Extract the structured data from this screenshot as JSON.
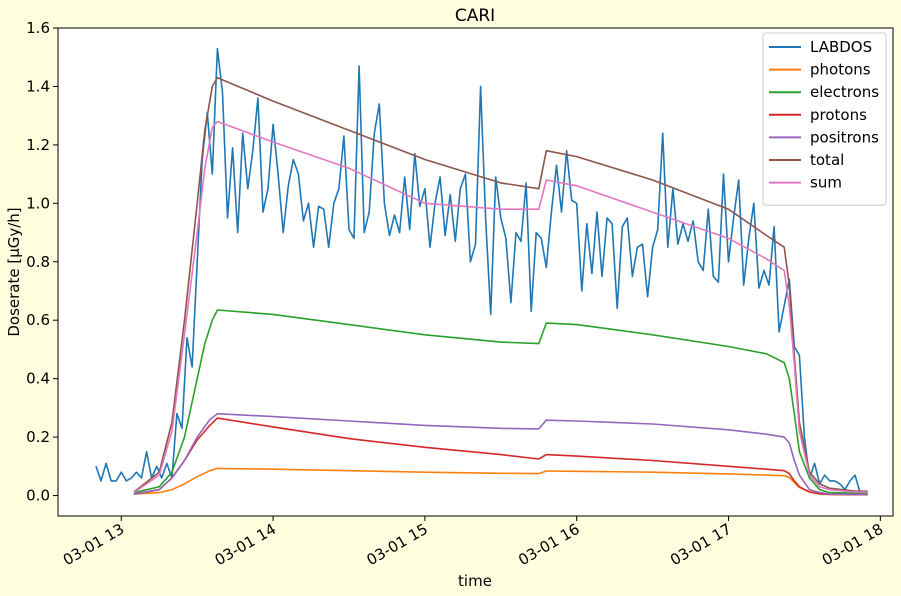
{
  "chart_data": {
    "type": "line",
    "title": "CARI",
    "xlabel": "time",
    "ylabel": "Doserate [µGy/h]",
    "xlim": [
      "2024-03-01T12:35",
      "2024-03-01T18:05"
    ],
    "ylim": [
      -0.07,
      1.6
    ],
    "x_ticks": [
      "2024-03-01T13:00",
      "2024-03-01T14:00",
      "2024-03-01T15:00",
      "2024-03-01T16:00",
      "2024-03-01T17:00",
      "2024-03-01T18:00"
    ],
    "x_tick_labels": [
      "03-01 13",
      "03-01 14",
      "03-01 15",
      "03-01 16",
      "03-01 17",
      "03-01 18"
    ],
    "y_ticks": [
      0.0,
      0.2,
      0.4,
      0.6,
      0.8,
      1.0,
      1.2,
      1.4,
      1.6
    ],
    "y_tick_labels": [
      "0.0",
      "0.2",
      "0.4",
      "0.6",
      "0.8",
      "1.0",
      "1.2",
      "1.4",
      "1.6"
    ],
    "grid": false,
    "legend_position": "top-right",
    "series": [
      {
        "name": "LABDOS",
        "color": "#1f77b4",
        "x": [
          "2024-03-01T12:50",
          "2024-03-01T12:52",
          "2024-03-01T12:54",
          "2024-03-01T12:56",
          "2024-03-01T12:58",
          "2024-03-01T13:00",
          "2024-03-01T13:02",
          "2024-03-01T13:04",
          "2024-03-01T13:06",
          "2024-03-01T13:08",
          "2024-03-01T13:10",
          "2024-03-01T13:12",
          "2024-03-01T13:14",
          "2024-03-01T13:16",
          "2024-03-01T13:18",
          "2024-03-01T13:20",
          "2024-03-01T13:22",
          "2024-03-01T13:24",
          "2024-03-01T13:26",
          "2024-03-01T13:28",
          "2024-03-01T13:30",
          "2024-03-01T13:32",
          "2024-03-01T13:34",
          "2024-03-01T13:36",
          "2024-03-01T13:38",
          "2024-03-01T13:40",
          "2024-03-01T13:42",
          "2024-03-01T13:44",
          "2024-03-01T13:46",
          "2024-03-01T13:48",
          "2024-03-01T13:50",
          "2024-03-01T13:52",
          "2024-03-01T13:54",
          "2024-03-01T13:56",
          "2024-03-01T13:58",
          "2024-03-01T14:00",
          "2024-03-01T14:02",
          "2024-03-01T14:04",
          "2024-03-01T14:06",
          "2024-03-01T14:08",
          "2024-03-01T14:10",
          "2024-03-01T14:12",
          "2024-03-01T14:14",
          "2024-03-01T14:16",
          "2024-03-01T14:18",
          "2024-03-01T14:20",
          "2024-03-01T14:22",
          "2024-03-01T14:24",
          "2024-03-01T14:26",
          "2024-03-01T14:28",
          "2024-03-01T14:30",
          "2024-03-01T14:32",
          "2024-03-01T14:34",
          "2024-03-01T14:36",
          "2024-03-01T14:38",
          "2024-03-01T14:40",
          "2024-03-01T14:42",
          "2024-03-01T14:44",
          "2024-03-01T14:46",
          "2024-03-01T14:48",
          "2024-03-01T14:50",
          "2024-03-01T14:52",
          "2024-03-01T14:54",
          "2024-03-01T14:56",
          "2024-03-01T14:58",
          "2024-03-01T15:00",
          "2024-03-01T15:02",
          "2024-03-01T15:04",
          "2024-03-01T15:06",
          "2024-03-01T15:08",
          "2024-03-01T15:10",
          "2024-03-01T15:12",
          "2024-03-01T15:14",
          "2024-03-01T15:16",
          "2024-03-01T15:18",
          "2024-03-01T15:20",
          "2024-03-01T15:22",
          "2024-03-01T15:24",
          "2024-03-01T15:26",
          "2024-03-01T15:28",
          "2024-03-01T15:30",
          "2024-03-01T15:32",
          "2024-03-01T15:34",
          "2024-03-01T15:36",
          "2024-03-01T15:38",
          "2024-03-01T15:40",
          "2024-03-01T15:42",
          "2024-03-01T15:44",
          "2024-03-01T15:46",
          "2024-03-01T15:48",
          "2024-03-01T15:50",
          "2024-03-01T15:52",
          "2024-03-01T15:54",
          "2024-03-01T15:56",
          "2024-03-01T15:58",
          "2024-03-01T16:00",
          "2024-03-01T16:02",
          "2024-03-01T16:04",
          "2024-03-01T16:06",
          "2024-03-01T16:08",
          "2024-03-01T16:10",
          "2024-03-01T16:12",
          "2024-03-01T16:14",
          "2024-03-01T16:16",
          "2024-03-01T16:18",
          "2024-03-01T16:20",
          "2024-03-01T16:22",
          "2024-03-01T16:24",
          "2024-03-01T16:26",
          "2024-03-01T16:28",
          "2024-03-01T16:30",
          "2024-03-01T16:32",
          "2024-03-01T16:34",
          "2024-03-01T16:36",
          "2024-03-01T16:38",
          "2024-03-01T16:40",
          "2024-03-01T16:42",
          "2024-03-01T16:44",
          "2024-03-01T16:46",
          "2024-03-01T16:48",
          "2024-03-01T16:50",
          "2024-03-01T16:52",
          "2024-03-01T16:54",
          "2024-03-01T16:56",
          "2024-03-01T16:58",
          "2024-03-01T17:00",
          "2024-03-01T17:02",
          "2024-03-01T17:04",
          "2024-03-01T17:06",
          "2024-03-01T17:08",
          "2024-03-01T17:10",
          "2024-03-01T17:12",
          "2024-03-01T17:14",
          "2024-03-01T17:16",
          "2024-03-01T17:18",
          "2024-03-01T17:20",
          "2024-03-01T17:22",
          "2024-03-01T17:24",
          "2024-03-01T17:26",
          "2024-03-01T17:28",
          "2024-03-01T17:30",
          "2024-03-01T17:32",
          "2024-03-01T17:34",
          "2024-03-01T17:36",
          "2024-03-01T17:38",
          "2024-03-01T17:40",
          "2024-03-01T17:42",
          "2024-03-01T17:44",
          "2024-03-01T17:46",
          "2024-03-01T17:48",
          "2024-03-01T17:50",
          "2024-03-01T17:52"
        ],
        "values": [
          0.1,
          0.05,
          0.11,
          0.05,
          0.05,
          0.08,
          0.05,
          0.06,
          0.08,
          0.06,
          0.15,
          0.06,
          0.1,
          0.06,
          0.11,
          0.06,
          0.28,
          0.23,
          0.54,
          0.44,
          0.8,
          1.15,
          1.31,
          1.1,
          1.53,
          1.38,
          0.95,
          1.19,
          0.9,
          1.24,
          1.05,
          1.18,
          1.36,
          0.97,
          1.05,
          1.27,
          1.1,
          0.9,
          1.06,
          1.15,
          1.1,
          0.94,
          1.0,
          0.85,
          0.99,
          0.98,
          0.85,
          1.0,
          1.05,
          1.23,
          0.91,
          0.88,
          1.47,
          0.9,
          0.97,
          1.24,
          1.34,
          1.0,
          0.89,
          0.96,
          0.9,
          1.09,
          0.91,
          1.17,
          0.99,
          1.05,
          0.85,
          1.0,
          1.09,
          0.89,
          1.03,
          0.87,
          1.05,
          1.1,
          0.8,
          0.86,
          1.4,
          0.95,
          0.62,
          1.09,
          0.95,
          0.88,
          0.66,
          0.9,
          0.87,
          1.07,
          0.63,
          0.9,
          0.88,
          0.78,
          0.97,
          1.13,
          0.97,
          1.18,
          1.01,
          1.0,
          0.7,
          0.93,
          0.76,
          0.97,
          0.75,
          0.95,
          0.93,
          0.64,
          0.92,
          0.95,
          0.75,
          0.85,
          0.86,
          0.68,
          0.85,
          0.91,
          1.24,
          0.85,
          1.05,
          0.86,
          0.93,
          0.87,
          0.94,
          0.8,
          0.77,
          0.98,
          0.75,
          0.73,
          1.1,
          0.8,
          0.95,
          1.08,
          0.72,
          0.88,
          1.0,
          0.71,
          0.77,
          0.72,
          0.92,
          0.56,
          0.65,
          0.74,
          0.51,
          0.48,
          0.2,
          0.06,
          0.11,
          0.04,
          0.07,
          0.05,
          0.05,
          0.04,
          0.02,
          0.05,
          0.07,
          0.01
        ]
      },
      {
        "name": "photons",
        "color": "#ff7f0e",
        "x": [
          "2024-03-01T13:05",
          "2024-03-01T13:15",
          "2024-03-01T13:20",
          "2024-03-01T13:25",
          "2024-03-01T13:30",
          "2024-03-01T13:35",
          "2024-03-01T13:38",
          "2024-03-01T14:00",
          "2024-03-01T14:30",
          "2024-03-01T15:00",
          "2024-03-01T15:30",
          "2024-03-01T15:45",
          "2024-03-01T15:48",
          "2024-03-01T16:00",
          "2024-03-01T16:30",
          "2024-03-01T17:00",
          "2024-03-01T17:15",
          "2024-03-01T17:22",
          "2024-03-01T17:24",
          "2024-03-01T17:26",
          "2024-03-01T17:28",
          "2024-03-01T17:32",
          "2024-03-01T17:36",
          "2024-03-01T17:40",
          "2024-03-01T17:50",
          "2024-03-01T17:55"
        ],
        "values": [
          0.005,
          0.01,
          0.02,
          0.04,
          0.065,
          0.085,
          0.093,
          0.09,
          0.085,
          0.08,
          0.076,
          0.075,
          0.084,
          0.083,
          0.08,
          0.074,
          0.07,
          0.068,
          0.062,
          0.045,
          0.028,
          0.012,
          0.006,
          0.004,
          0.003,
          0.003
        ]
      },
      {
        "name": "electrons",
        "color": "#2ca02c",
        "x": [
          "2024-03-01T13:05",
          "2024-03-01T13:15",
          "2024-03-01T13:20",
          "2024-03-01T13:25",
          "2024-03-01T13:30",
          "2024-03-01T13:33",
          "2024-03-01T13:36",
          "2024-03-01T13:38",
          "2024-03-01T14:00",
          "2024-03-01T14:30",
          "2024-03-01T15:00",
          "2024-03-01T15:30",
          "2024-03-01T15:45",
          "2024-03-01T15:48",
          "2024-03-01T16:00",
          "2024-03-01T16:30",
          "2024-03-01T17:00",
          "2024-03-01T17:15",
          "2024-03-01T17:22",
          "2024-03-01T17:24",
          "2024-03-01T17:26",
          "2024-03-01T17:28",
          "2024-03-01T17:32",
          "2024-03-01T17:36",
          "2024-03-01T17:40",
          "2024-03-01T17:50",
          "2024-03-01T17:55"
        ],
        "values": [
          0.01,
          0.03,
          0.08,
          0.2,
          0.4,
          0.52,
          0.6,
          0.635,
          0.62,
          0.585,
          0.55,
          0.525,
          0.52,
          0.59,
          0.585,
          0.55,
          0.51,
          0.485,
          0.455,
          0.4,
          0.28,
          0.15,
          0.06,
          0.02,
          0.01,
          0.008,
          0.008
        ]
      },
      {
        "name": "protons",
        "color": "#d62728",
        "x": [
          "2024-03-01T13:05",
          "2024-03-01T13:15",
          "2024-03-01T13:20",
          "2024-03-01T13:25",
          "2024-03-01T13:30",
          "2024-03-01T13:35",
          "2024-03-01T13:38",
          "2024-03-01T14:00",
          "2024-03-01T14:30",
          "2024-03-01T15:00",
          "2024-03-01T15:30",
          "2024-03-01T15:45",
          "2024-03-01T15:48",
          "2024-03-01T16:00",
          "2024-03-01T16:30",
          "2024-03-01T17:00",
          "2024-03-01T17:15",
          "2024-03-01T17:22",
          "2024-03-01T17:24",
          "2024-03-01T17:26",
          "2024-03-01T17:28",
          "2024-03-01T17:32",
          "2024-03-01T17:36",
          "2024-03-01T17:40",
          "2024-03-01T17:50",
          "2024-03-01T17:55"
        ],
        "values": [
          0.005,
          0.02,
          0.06,
          0.12,
          0.19,
          0.24,
          0.265,
          0.235,
          0.195,
          0.165,
          0.14,
          0.125,
          0.14,
          0.135,
          0.12,
          0.1,
          0.09,
          0.085,
          0.075,
          0.05,
          0.03,
          0.012,
          0.006,
          0.004,
          0.003,
          0.003
        ]
      },
      {
        "name": "positrons",
        "color": "#9467bd",
        "x": [
          "2024-03-01T13:05",
          "2024-03-01T13:15",
          "2024-03-01T13:20",
          "2024-03-01T13:25",
          "2024-03-01T13:30",
          "2024-03-01T13:35",
          "2024-03-01T13:38",
          "2024-03-01T14:00",
          "2024-03-01T14:30",
          "2024-03-01T15:00",
          "2024-03-01T15:30",
          "2024-03-01T15:45",
          "2024-03-01T15:48",
          "2024-03-01T16:00",
          "2024-03-01T16:30",
          "2024-03-01T17:00",
          "2024-03-01T17:15",
          "2024-03-01T17:22",
          "2024-03-01T17:24",
          "2024-03-01T17:26",
          "2024-03-01T17:28",
          "2024-03-01T17:32",
          "2024-03-01T17:36",
          "2024-03-01T17:40",
          "2024-03-01T17:50",
          "2024-03-01T17:55"
        ],
        "values": [
          0.005,
          0.02,
          0.06,
          0.12,
          0.2,
          0.26,
          0.28,
          0.27,
          0.255,
          0.24,
          0.23,
          0.228,
          0.258,
          0.255,
          0.245,
          0.225,
          0.21,
          0.2,
          0.18,
          0.12,
          0.07,
          0.02,
          0.01,
          0.005,
          0.004,
          0.004
        ]
      },
      {
        "name": "total",
        "color": "#8c564b",
        "x": [
          "2024-03-01T13:05",
          "2024-03-01T13:15",
          "2024-03-01T13:20",
          "2024-03-01T13:25",
          "2024-03-01T13:30",
          "2024-03-01T13:33",
          "2024-03-01T13:36",
          "2024-03-01T13:38",
          "2024-03-01T14:00",
          "2024-03-01T14:30",
          "2024-03-01T15:00",
          "2024-03-01T15:30",
          "2024-03-01T15:45",
          "2024-03-01T15:48",
          "2024-03-01T16:00",
          "2024-03-01T16:30",
          "2024-03-01T17:00",
          "2024-03-01T17:15",
          "2024-03-01T17:22",
          "2024-03-01T17:24",
          "2024-03-01T17:26",
          "2024-03-01T17:28",
          "2024-03-01T17:32",
          "2024-03-01T17:36",
          "2024-03-01T17:40",
          "2024-03-01T17:50",
          "2024-03-01T17:55"
        ],
        "values": [
          0.012,
          0.08,
          0.25,
          0.6,
          1.0,
          1.25,
          1.4,
          1.43,
          1.35,
          1.25,
          1.15,
          1.07,
          1.05,
          1.18,
          1.16,
          1.08,
          0.98,
          0.89,
          0.85,
          0.72,
          0.48,
          0.25,
          0.08,
          0.04,
          0.025,
          0.015,
          0.015
        ]
      },
      {
        "name": "sum",
        "color": "#e377c2",
        "x": [
          "2024-03-01T13:05",
          "2024-03-01T13:15",
          "2024-03-01T13:20",
          "2024-03-01T13:25",
          "2024-03-01T13:30",
          "2024-03-01T13:33",
          "2024-03-01T13:36",
          "2024-03-01T13:38",
          "2024-03-01T14:00",
          "2024-03-01T14:30",
          "2024-03-01T15:00",
          "2024-03-01T15:30",
          "2024-03-01T15:45",
          "2024-03-01T15:48",
          "2024-03-01T16:00",
          "2024-03-01T16:30",
          "2024-03-01T17:00",
          "2024-03-01T17:15",
          "2024-03-01T17:22",
          "2024-03-01T17:24",
          "2024-03-01T17:26",
          "2024-03-01T17:28",
          "2024-03-01T17:32",
          "2024-03-01T17:36",
          "2024-03-01T17:40",
          "2024-03-01T17:50",
          "2024-03-01T17:55"
        ],
        "values": [
          0.01,
          0.07,
          0.22,
          0.55,
          0.9,
          1.12,
          1.26,
          1.28,
          1.21,
          1.12,
          1.0,
          0.98,
          0.98,
          1.08,
          1.06,
          0.97,
          0.88,
          0.81,
          0.77,
          0.65,
          0.45,
          0.22,
          0.07,
          0.03,
          0.02,
          0.012,
          0.012
        ]
      }
    ]
  }
}
